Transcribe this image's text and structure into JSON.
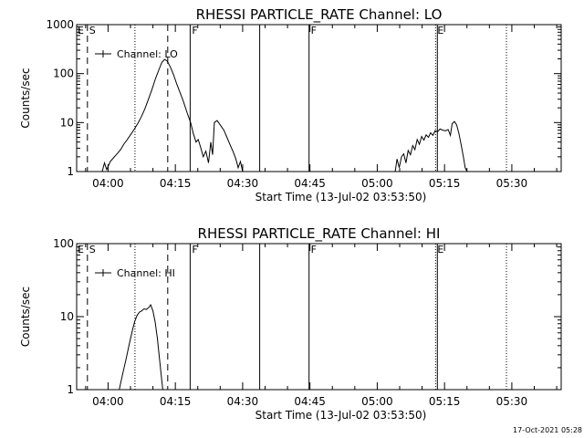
{
  "footer": {
    "timestamp": "17-Oct-2021 05:28"
  },
  "chart_data": [
    {
      "type": "line",
      "title": "RHESSI PARTICLE_RATE Channel: LO",
      "xlabel": "Start Time (13-Jul-02 03:53:50)",
      "ylabel": "Counts/sec",
      "yscale": "log",
      "ylim": [
        1,
        1000
      ],
      "xlim_minutes": [
        -7,
        101
      ],
      "xticks": [
        {
          "m": 0,
          "label": "04:00"
        },
        {
          "m": 15,
          "label": "04:15"
        },
        {
          "m": 30,
          "label": "04:30"
        },
        {
          "m": 45,
          "label": "04:45"
        },
        {
          "m": 60,
          "label": "05:00"
        },
        {
          "m": 75,
          "label": "05:15"
        },
        {
          "m": 90,
          "label": "05:30"
        }
      ],
      "yticks": [
        {
          "v": 1,
          "label": "1"
        },
        {
          "v": 10,
          "label": "10"
        },
        {
          "v": 100,
          "label": "100"
        },
        {
          "v": 1000,
          "label": "1000"
        }
      ],
      "legend": {
        "label": "Channel: LO",
        "placement": "top-left"
      },
      "markers": [
        {
          "m": -4.6,
          "style": "dashed",
          "label": "S"
        },
        {
          "m": 6.0,
          "style": "dotted",
          "label": ""
        },
        {
          "m": 13.3,
          "style": "dashed",
          "label": ""
        },
        {
          "m": 18.3,
          "style": "solid",
          "label": "F"
        },
        {
          "m": 33.8,
          "style": "solid",
          "label": ""
        },
        {
          "m": 44.8,
          "style": "solid",
          "label": "F"
        },
        {
          "m": 73.0,
          "style": "dotted",
          "label": "E"
        },
        {
          "m": 73.4,
          "style": "solid",
          "label": ""
        },
        {
          "m": 88.8,
          "style": "dotted",
          "label": ""
        }
      ],
      "edge_labels": [
        "E",
        "E"
      ],
      "series": [
        {
          "name": "Channel: LO",
          "segments": [
            [
              [
                -1.3,
                1
              ],
              [
                -0.8,
                1.5
              ],
              [
                -0.3,
                1.1
              ],
              [
                0.5,
                1.6
              ],
              [
                1.2,
                1.9
              ],
              [
                2.0,
                2.3
              ],
              [
                2.8,
                2.8
              ],
              [
                3.5,
                3.6
              ],
              [
                4.2,
                4.4
              ],
              [
                5.0,
                5.6
              ],
              [
                5.8,
                7.2
              ],
              [
                6.6,
                9.5
              ],
              [
                7.4,
                13
              ],
              [
                8.2,
                19
              ],
              [
                9.0,
                30
              ],
              [
                9.8,
                48
              ],
              [
                10.6,
                80
              ],
              [
                11.4,
                125
              ],
              [
                12.0,
                170
              ],
              [
                12.6,
                195
              ],
              [
                13.2,
                180
              ],
              [
                13.9,
                135
              ],
              [
                14.6,
                95
              ],
              [
                15.3,
                62
              ],
              [
                16.0,
                42
              ],
              [
                16.8,
                27
              ],
              [
                17.6,
                16
              ],
              [
                18.4,
                10
              ],
              [
                19.0,
                6
              ],
              [
                19.6,
                4
              ],
              [
                20.1,
                4.5
              ],
              [
                20.6,
                3.2
              ],
              [
                21.2,
                2.0
              ],
              [
                21.8,
                2.6
              ],
              [
                22.4,
                1.5
              ],
              [
                22.9,
                4.0
              ],
              [
                23.3,
                2.2
              ],
              [
                23.7,
                10
              ],
              [
                24.3,
                11
              ],
              [
                25.0,
                9
              ],
              [
                25.8,
                7
              ],
              [
                26.5,
                5
              ],
              [
                27.2,
                3.5
              ],
              [
                27.9,
                2.5
              ],
              [
                28.5,
                1.8
              ],
              [
                29.0,
                1.2
              ],
              [
                29.5,
                1.6
              ],
              [
                30.0,
                1
              ]
            ],
            [
              [
                64.0,
                1
              ],
              [
                64.4,
                1.8
              ],
              [
                64.9,
                1.2
              ],
              [
                65.4,
                2.0
              ],
              [
                65.9,
                2.3
              ],
              [
                66.4,
                1.5
              ],
              [
                66.9,
                2.7
              ],
              [
                67.4,
                2.2
              ],
              [
                67.9,
                3.4
              ],
              [
                68.4,
                2.8
              ],
              [
                68.9,
                4.5
              ],
              [
                69.4,
                3.6
              ],
              [
                69.9,
                5.2
              ],
              [
                70.4,
                4.4
              ],
              [
                70.9,
                5.6
              ],
              [
                71.4,
                5.0
              ],
              [
                71.9,
                6.2
              ],
              [
                72.4,
                5.5
              ],
              [
                72.9,
                6.8
              ],
              [
                73.4,
                6.5
              ],
              [
                74.0,
                7.4
              ],
              [
                74.6,
                7.0
              ],
              [
                75.2,
                6.8
              ],
              [
                75.8,
                7.2
              ],
              [
                76.3,
                5.5
              ],
              [
                76.7,
                9.5
              ],
              [
                77.2,
                10.5
              ],
              [
                77.7,
                9
              ],
              [
                78.2,
                6
              ],
              [
                78.7,
                3.5
              ],
              [
                79.2,
                2.0
              ],
              [
                79.6,
                1.2
              ],
              [
                80.0,
                1
              ]
            ]
          ]
        }
      ]
    },
    {
      "type": "line",
      "title": "RHESSI PARTICLE_RATE Channel: HI",
      "xlabel": "Start Time (13-Jul-02 03:53:50)",
      "ylabel": "Counts/sec",
      "yscale": "log",
      "ylim": [
        1,
        100
      ],
      "xlim_minutes": [
        -7,
        101
      ],
      "xticks": [
        {
          "m": 0,
          "label": "04:00"
        },
        {
          "m": 15,
          "label": "04:15"
        },
        {
          "m": 30,
          "label": "04:30"
        },
        {
          "m": 45,
          "label": "04:45"
        },
        {
          "m": 60,
          "label": "05:00"
        },
        {
          "m": 75,
          "label": "05:15"
        },
        {
          "m": 90,
          "label": "05:30"
        }
      ],
      "yticks": [
        {
          "v": 1,
          "label": "1"
        },
        {
          "v": 10,
          "label": "10"
        },
        {
          "v": 100,
          "label": "100"
        }
      ],
      "legend": {
        "label": "Channel: HI",
        "placement": "top-left"
      },
      "markers": [
        {
          "m": -4.6,
          "style": "dashed",
          "label": "S"
        },
        {
          "m": 6.0,
          "style": "dotted",
          "label": ""
        },
        {
          "m": 13.3,
          "style": "dashed",
          "label": ""
        },
        {
          "m": 18.3,
          "style": "solid",
          "label": "F"
        },
        {
          "m": 33.8,
          "style": "solid",
          "label": ""
        },
        {
          "m": 44.8,
          "style": "solid",
          "label": "F"
        },
        {
          "m": 73.0,
          "style": "dotted",
          "label": "E"
        },
        {
          "m": 73.4,
          "style": "solid",
          "label": ""
        },
        {
          "m": 88.8,
          "style": "dotted",
          "label": ""
        }
      ],
      "edge_labels": [
        "E",
        "E"
      ],
      "series": [
        {
          "name": "Channel: HI",
          "segments": [
            [
              [
                2.5,
                1
              ],
              [
                3.0,
                1.4
              ],
              [
                3.5,
                1.9
              ],
              [
                4.0,
                2.6
              ],
              [
                4.5,
                3.6
              ],
              [
                5.0,
                5.0
              ],
              [
                5.5,
                6.8
              ],
              [
                6.0,
                8.8
              ],
              [
                6.5,
                10.5
              ],
              [
                7.0,
                11.5
              ],
              [
                7.5,
                12.0
              ],
              [
                8.0,
                12.8
              ],
              [
                8.5,
                12.5
              ],
              [
                9.0,
                13.2
              ],
              [
                9.5,
                14.5
              ],
              [
                10.0,
                12.0
              ],
              [
                10.5,
                8.5
              ],
              [
                11.0,
                5.0
              ],
              [
                11.5,
                2.5
              ],
              [
                12.0,
                1.3
              ],
              [
                12.2,
                1
              ]
            ]
          ]
        }
      ]
    }
  ]
}
